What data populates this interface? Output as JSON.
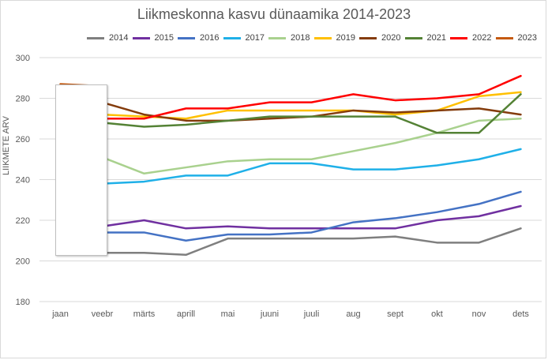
{
  "chart_data": {
    "type": "line",
    "title": "Liikmeskonna kasvu dünaamika 2014-2023",
    "ylabel": "LIIKMETE ARV",
    "xlabel": "",
    "ylim": [
      180,
      300
    ],
    "yticks": [
      180,
      200,
      220,
      240,
      260,
      280,
      300
    ],
    "grid": true,
    "legend_position": "top",
    "categories": [
      "jaan",
      "veebr",
      "märts",
      "aprill",
      "mai",
      "juuni",
      "juuli",
      "aug",
      "sept",
      "okt",
      "nov",
      "dets"
    ],
    "series": [
      {
        "name": "2014",
        "color": "#7f7f7f",
        "values": [
          203,
          204,
          204,
          203,
          211,
          211,
          211,
          211,
          212,
          209,
          209,
          216
        ]
      },
      {
        "name": "2015",
        "color": "#7030a0",
        "values": [
          221,
          217,
          220,
          216,
          217,
          216,
          216,
          216,
          216,
          220,
          222,
          227
        ]
      },
      {
        "name": "2016",
        "color": "#4472c4",
        "values": [
          216,
          214,
          214,
          210,
          213,
          213,
          214,
          219,
          221,
          224,
          228,
          234
        ]
      },
      {
        "name": "2017",
        "color": "#1fb0e8",
        "values": [
          237,
          238,
          239,
          242,
          242,
          248,
          248,
          245,
          245,
          247,
          250,
          255
        ]
      },
      {
        "name": "2018",
        "color": "#a9d18e",
        "values": [
          251,
          251,
          243,
          246,
          249,
          250,
          250,
          254,
          258,
          263,
          269,
          270
        ]
      },
      {
        "name": "2019",
        "color": "#ffc000",
        "values": [
          273,
          272,
          271,
          270,
          274,
          274,
          274,
          274,
          272,
          274,
          281,
          283
        ]
      },
      {
        "name": "2020",
        "color": "#843c0c",
        "values": [
          278,
          278,
          272,
          269,
          269,
          270,
          271,
          274,
          273,
          274,
          275,
          272
        ]
      },
      {
        "name": "2021",
        "color": "#548235",
        "values": [
          271,
          268,
          266,
          267,
          269,
          271,
          271,
          271,
          271,
          263,
          263,
          282
        ]
      },
      {
        "name": "2022",
        "color": "#ff0000",
        "values": [
          273,
          270,
          270,
          275,
          275,
          278,
          278,
          282,
          279,
          280,
          282,
          291
        ]
      },
      {
        "name": "2023",
        "color": "#c55a11",
        "values": [
          287,
          286,
          null,
          null,
          null,
          null,
          null,
          null,
          null,
          null,
          null,
          null
        ]
      }
    ]
  }
}
